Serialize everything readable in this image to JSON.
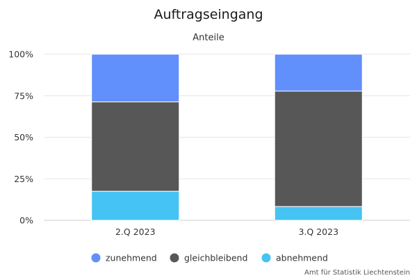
{
  "chart_data": {
    "type": "bar",
    "stacked": true,
    "title": "Auftragseingang",
    "subtitle": "Anteile",
    "categories": [
      "2.Q 2023",
      "3.Q 2023"
    ],
    "series": [
      {
        "name": "abnehmend",
        "values": [
          17.5,
          8.3
        ],
        "color": "#45c3f2"
      },
      {
        "name": "gleichbleibend",
        "values": [
          53.8,
          69.5
        ],
        "color": "#575757"
      },
      {
        "name": "zunehmend",
        "values": [
          28.7,
          22.2
        ],
        "color": "#618ffc"
      }
    ],
    "legend_order": [
      "zunehmend",
      "gleichbleibend",
      "abnehmend"
    ],
    "ylim": [
      0,
      100
    ],
    "yticks": [
      0,
      25,
      50,
      75,
      100
    ],
    "ytick_labels": [
      "0%",
      "25%",
      "50%",
      "75%",
      "100%"
    ],
    "grid": true,
    "legend_position": "bottom-center",
    "credit": "Amt für Statistik Liechtenstein"
  }
}
